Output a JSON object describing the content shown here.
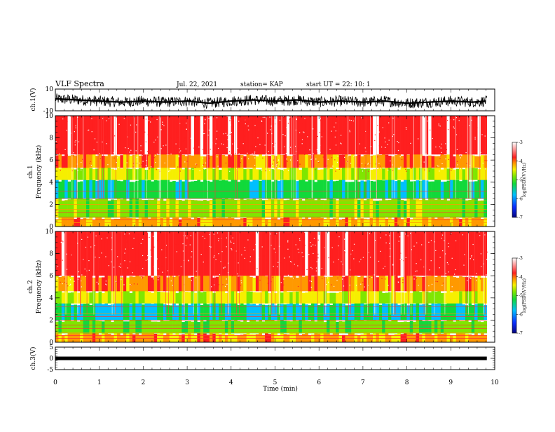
{
  "header": {
    "title": "VLF Spectra",
    "date": "Jul. 22, 2021",
    "station": "station= KAP",
    "start": "start  UT =   22: 10: 1"
  },
  "colors": {
    "spectrum_scale": [
      "#06057f",
      "#0a2dff",
      "#00bfff",
      "#11d93a",
      "#7fe600",
      "#f6ef00",
      "#ff9900",
      "#ff1f1f",
      "#ffffff"
    ],
    "trace": "#000000"
  },
  "chart_data": [
    {
      "type": "line",
      "ylabel": "ch.1(V)",
      "ylim": [
        -10,
        10
      ],
      "yticks": [
        "10",
        "-10"
      ],
      "xlim": [
        0,
        10
      ],
      "description_series": "ch.1 waveform",
      "x": [
        0,
        0.5,
        1,
        1.5,
        2,
        2.5,
        3,
        3.5,
        4,
        4.5,
        5,
        5.5,
        6,
        6.5,
        7,
        7.5,
        8,
        8.5,
        9,
        9.5,
        9.8
      ],
      "y": [
        1,
        0,
        -1,
        -2,
        -1,
        -2,
        -1,
        -3,
        -1,
        0,
        -1,
        0,
        -2,
        -1,
        -2,
        -1,
        -3,
        -2,
        -1,
        -2,
        -1
      ]
    },
    {
      "type": "heatmap",
      "ylabel": "ch.1\nFrequency  (kHz)",
      "ylim": [
        0,
        10
      ],
      "yticks": [
        "0",
        "2",
        "4",
        "6",
        "8",
        "10"
      ],
      "xlim": [
        0,
        10
      ],
      "colorbar": {
        "label": "log(PSD)(V²/Hz)",
        "range": [
          -7,
          -3
        ],
        "ticks": [
          "-3",
          "-4",
          "-5",
          "-6",
          "-7"
        ]
      },
      "bands_khz": [
        {
          "from": 0,
          "to": 0.8,
          "log_psd": -4
        },
        {
          "from": 0.8,
          "to": 2.5,
          "log_psd": -4.6
        },
        {
          "from": 2.5,
          "to": 4.2,
          "log_psd": -5.1
        },
        {
          "from": 4.2,
          "to": 5.3,
          "log_psd": -4.4
        },
        {
          "from": 5.3,
          "to": 6.5,
          "log_psd": -3.9
        },
        {
          "from": 6.5,
          "to": 10,
          "log_psd": -3.2
        }
      ]
    },
    {
      "type": "heatmap",
      "ylabel": "ch.2\nFrequency  (kHz)",
      "ylim": [
        0,
        10
      ],
      "yticks": [
        "0",
        "2",
        "4",
        "6",
        "8",
        "10"
      ],
      "xlim": [
        0,
        10
      ],
      "colorbar": {
        "label": "log(PSD)(V²/Hz)",
        "range": [
          -7,
          -3
        ],
        "ticks": [
          "-3",
          "-4",
          "-5",
          "-6",
          "-7"
        ]
      },
      "bands_khz": [
        {
          "from": 0,
          "to": 0.8,
          "log_psd": -4
        },
        {
          "from": 0.8,
          "to": 2,
          "log_psd": -4.7
        },
        {
          "from": 2,
          "to": 3.5,
          "log_psd": -5.2
        },
        {
          "from": 3.5,
          "to": 4.6,
          "log_psd": -4.4
        },
        {
          "from": 4.6,
          "to": 6,
          "log_psd": -3.9
        },
        {
          "from": 6,
          "to": 10,
          "log_psd": -3.2
        }
      ]
    },
    {
      "type": "line",
      "ylabel": "ch.3(V)",
      "ylim": [
        -5,
        5
      ],
      "yticks": [
        "5",
        "0",
        "-5"
      ],
      "xlim": [
        0,
        10
      ],
      "x": [
        0,
        9.8
      ],
      "y": [
        0,
        0
      ],
      "xlabel": "Time  (min)",
      "xticks": [
        "0",
        "1",
        "2",
        "3",
        "4",
        "5",
        "6",
        "7",
        "8",
        "9",
        "10"
      ]
    }
  ]
}
